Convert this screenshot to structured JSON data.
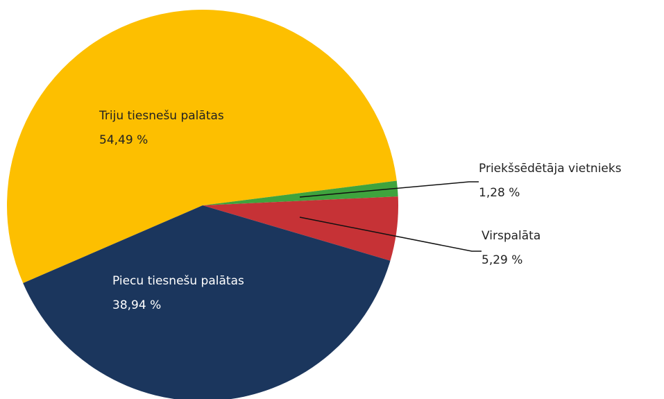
{
  "chart_data": {
    "type": "pie",
    "categories": [
      "Triju tiesnešu palātas",
      "Priekšsēdētāja vietnieks",
      "Virspalāta",
      "Piecu tiesnešu palātas"
    ],
    "values": [
      54.49,
      1.28,
      5.29,
      38.94
    ],
    "value_labels": [
      "54,49 %",
      "1,28 %",
      "5,29 %",
      "38,94 %"
    ],
    "colors": [
      "#fdbf00",
      "#3fa33d",
      "#c63236",
      "#1b365d"
    ]
  }
}
